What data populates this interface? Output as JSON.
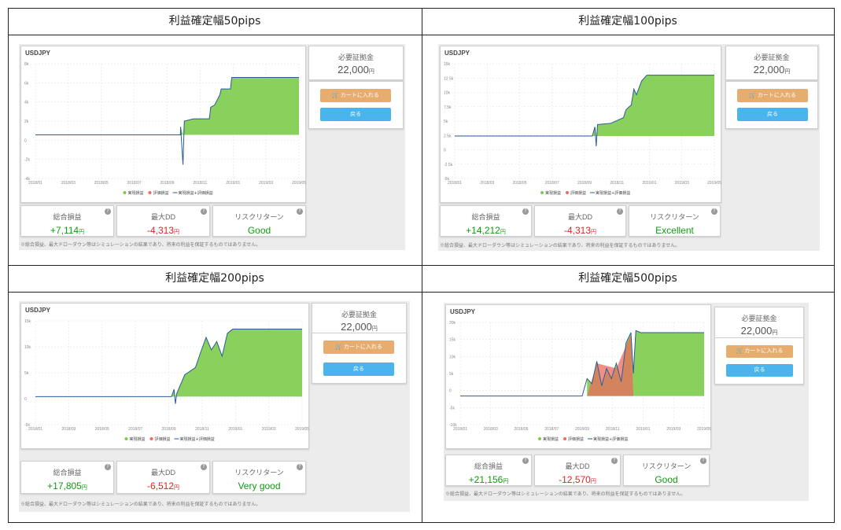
{
  "legend": {
    "realized": "実現損益",
    "unrealized": "評価損益",
    "total": "実現損益+評価損益"
  },
  "labels": {
    "margin": "必要証拠金",
    "cart": "カートに入れる",
    "back": "戻る",
    "total_pl": "総合損益",
    "max_dd": "最大DD",
    "risk_return": "リスクリターン",
    "yen": "円",
    "note": "※総合損益、最大ドローダウン等はシミュレーションの結果であり、将来の利益を保証するものではありません。"
  },
  "colors": {
    "realized": "#7ccc4a",
    "unrealized": "#ec6a5e",
    "total": "#2a5c9a",
    "cart": "#e6ad6f",
    "back": "#4ab4ec"
  },
  "panels": [
    {
      "title": "利益確定幅50pips",
      "symbol": "USDJPY",
      "margin": "22,000",
      "total_pl": "+7,114",
      "max_dd": "-4,313",
      "rating": "Good",
      "chart_data": {
        "type": "area",
        "y_ticks": [
          "8k",
          "6k",
          "4k",
          "2k",
          "0",
          "-2k",
          "-4k"
        ],
        "x_ticks": [
          "2018/01",
          "2018/03",
          "2018/05",
          "2018/07",
          "2018/09",
          "2018/11",
          "2019/01",
          "2019/03",
          "2019/05"
        ]
      }
    },
    {
      "title": "利益確定幅100pips",
      "symbol": "USDJPY",
      "margin": "22,000",
      "total_pl": "+14,212",
      "max_dd": "-4,313",
      "rating": "Excellent",
      "chart_data": {
        "type": "area",
        "y_ticks": [
          "15k",
          "12.5k",
          "10k",
          "7.5k",
          "5k",
          "2.5k",
          "0",
          "-2.5k",
          "-5k"
        ],
        "x_ticks": [
          "2018/01",
          "2018/03",
          "2018/05",
          "2018/07",
          "2018/09",
          "2018/11",
          "2019/01",
          "2019/03",
          "2019/05"
        ]
      }
    },
    {
      "title": "利益確定幅200pips",
      "symbol": "USDJPY",
      "margin": "22,000",
      "total_pl": "+17,805",
      "max_dd": "-6,512",
      "rating": "Very good",
      "chart_data": {
        "type": "area",
        "y_ticks": [
          "15k",
          "10k",
          "5k",
          "0",
          "-5k"
        ],
        "x_ticks": [
          "2018/01",
          "2018/03",
          "2018/05",
          "2018/07",
          "2018/09",
          "2018/11",
          "2019/01",
          "2019/03",
          "2019/05"
        ]
      }
    },
    {
      "title": "利益確定幅500pips",
      "symbol": "USDJPY",
      "margin": "22,000",
      "total_pl": "+21,156",
      "max_dd": "-12,570",
      "rating": "Good",
      "chart_data": {
        "type": "area",
        "y_ticks": [
          "20k",
          "15k",
          "10k",
          "5k",
          "0",
          "-5k",
          "-10k"
        ],
        "x_ticks": [
          "2018/01",
          "2018/03",
          "2018/05",
          "2018/07",
          "2018/09",
          "2018/11",
          "2019/01",
          "2019/03",
          "2019/05"
        ]
      }
    }
  ]
}
